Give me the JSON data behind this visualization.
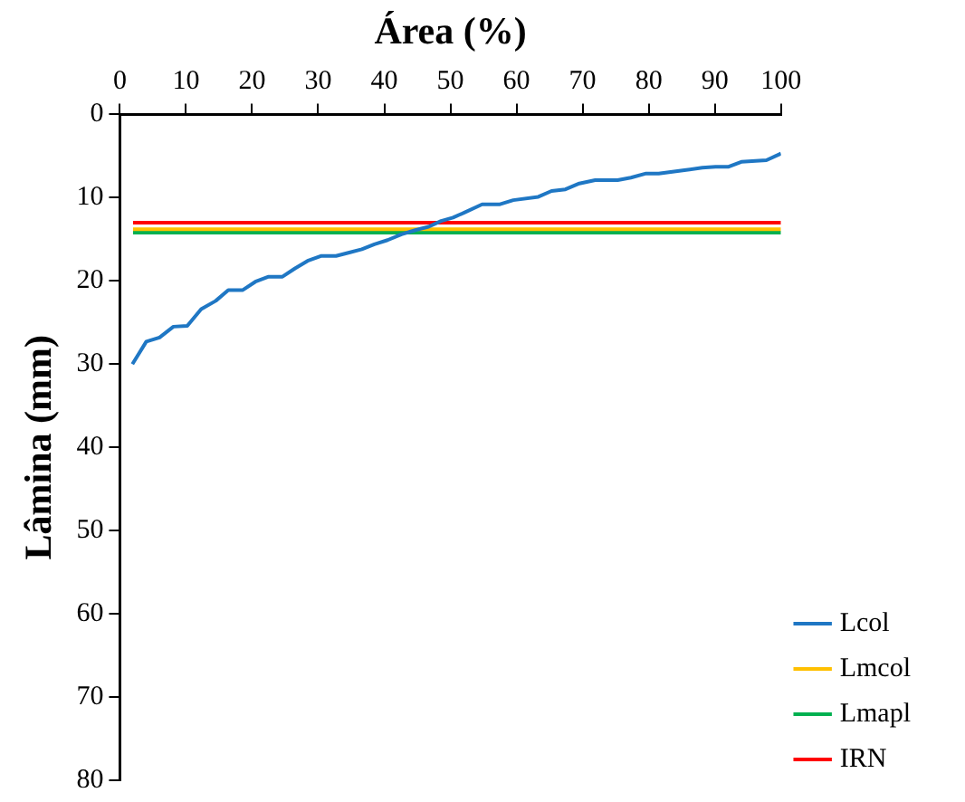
{
  "chart_data": {
    "type": "line",
    "xlabel": "Área (%)",
    "ylabel": "Lâmina (mm)",
    "xlim": [
      0,
      100
    ],
    "xticks": [
      0,
      10,
      20,
      30,
      40,
      50,
      60,
      70,
      80,
      90,
      100
    ],
    "ylim": [
      80,
      0
    ],
    "yticks": [
      0,
      10,
      20,
      30,
      40,
      50,
      60,
      70,
      80
    ],
    "grid": false,
    "legend": "bottom right",
    "marker": "none",
    "line_style": "solid",
    "series": [
      {
        "name": "Lcol",
        "color": "#1f77c4",
        "x": [
          1.9,
          4.0,
          6.0,
          8.1,
          10.2,
          12.3,
          14.5,
          16.4,
          18.6,
          20.5,
          22.5,
          24.6,
          26.5,
          28.4,
          30.5,
          32.7,
          34.7,
          36.6,
          38.5,
          40.5,
          42.6,
          44.7,
          46.7,
          48.6,
          50.4,
          52.1,
          54.8,
          57.5,
          59.5,
          63.3,
          65.3,
          67.4,
          69.5,
          71.9,
          75.3,
          77.3,
          79.6,
          81.5,
          85.4,
          88.1,
          90.1,
          92.0,
          94.0,
          97.8,
          100
        ],
        "values": [
          30.0,
          27.3,
          26.8,
          25.5,
          25.4,
          23.4,
          22.4,
          21.1,
          21.1,
          20.1,
          19.5,
          19.5,
          18.5,
          17.6,
          17.0,
          17.0,
          16.6,
          16.2,
          15.6,
          15.1,
          14.4,
          13.9,
          13.5,
          12.8,
          12.4,
          11.8,
          10.8,
          10.8,
          10.3,
          9.9,
          9.2,
          9.0,
          8.3,
          7.9,
          7.9,
          7.6,
          7.1,
          7.1,
          6.7,
          6.4,
          6.3,
          6.3,
          5.7,
          5.5,
          4.7
        ]
      },
      {
        "name": "Lmcol",
        "color": "#ffc000",
        "x": [
          2,
          100
        ],
        "values": [
          13.8,
          13.8
        ]
      },
      {
        "name": "Lmapl",
        "color": "#00b050",
        "x": [
          2,
          100
        ],
        "values": [
          14.2,
          14.2
        ]
      },
      {
        "name": "IRN",
        "color": "#ff0000",
        "x": [
          2,
          100
        ],
        "values": [
          13.0,
          13.0
        ]
      }
    ]
  }
}
